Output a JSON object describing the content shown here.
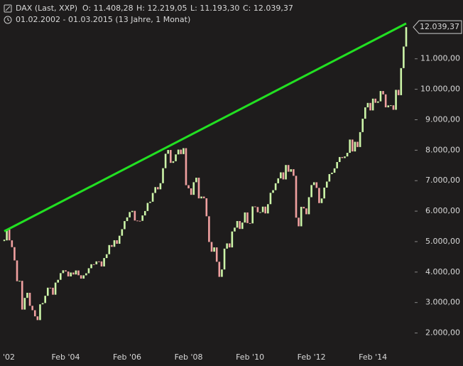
{
  "chart_data": {
    "type": "candlestick",
    "title": "DAX (Last, XXP)",
    "ohlc_header": [
      "O: 11.408,28",
      "H: 12.219,05",
      "L: 11.193,30",
      "C: 12.039,37"
    ],
    "subtitle": "01.02.2002 - 01.03.2015 (13 Jahre, 1 Monat)",
    "last_label": "12.039,37",
    "up_color": "#ccf5a8",
    "down_color": "#f0a0a0",
    "line_color": "#22e022",
    "categories": [
      "'02",
      null,
      null,
      null,
      null,
      null,
      null,
      null,
      null,
      null,
      null,
      null,
      null,
      null,
      null,
      null,
      null,
      null,
      null,
      null,
      null,
      null,
      null,
      null,
      "Feb '04",
      null,
      null,
      null,
      null,
      null,
      null,
      null,
      null,
      null,
      null,
      null,
      null,
      null,
      null,
      null,
      null,
      null,
      null,
      null,
      null,
      null,
      null,
      null,
      "Feb '06",
      null,
      null,
      null,
      null,
      null,
      null,
      null,
      null,
      null,
      null,
      null,
      null,
      null,
      null,
      null,
      null,
      null,
      null,
      null,
      null,
      null,
      null,
      null,
      "Feb '08",
      null,
      null,
      null,
      null,
      null,
      null,
      null,
      null,
      null,
      null,
      null,
      null,
      null,
      null,
      null,
      null,
      null,
      null,
      null,
      null,
      null,
      null,
      null,
      "Feb '10",
      null,
      null,
      null,
      null,
      null,
      null,
      null,
      null,
      null,
      null,
      null,
      null,
      null,
      null,
      null,
      null,
      null,
      null,
      null,
      null,
      null,
      null,
      null,
      "Feb '12",
      null,
      null,
      null,
      null,
      null,
      null,
      null,
      null,
      null,
      null,
      null,
      null,
      null,
      null,
      null,
      null,
      null,
      null,
      null,
      null,
      null,
      null,
      null,
      "Feb '14",
      null,
      null,
      null,
      null,
      null,
      null,
      null,
      null,
      null,
      null,
      null,
      null,
      null
    ],
    "values": [
      5040,
      5397,
      5041,
      4818,
      4382,
      3700,
      3712,
      2769,
      3152,
      3320,
      2893,
      2748,
      2547,
      2424,
      2942,
      2983,
      3221,
      3487,
      3485,
      3257,
      3655,
      3746,
      3965,
      4058,
      4018,
      3857,
      3985,
      3921,
      4052,
      3895,
      3785,
      3893,
      3960,
      4126,
      4256,
      4254,
      4350,
      4349,
      4185,
      4460,
      4586,
      4886,
      4829,
      5044,
      4929,
      5193,
      5408,
      5674,
      5796,
      5970,
      6009,
      5692,
      5683,
      5681,
      5859,
      6004,
      6269,
      6309,
      6597,
      6789,
      6716,
      6917,
      7409,
      7883,
      8007,
      7584,
      7638,
      7862,
      8019,
      7871,
      8067,
      6852,
      6748,
      6535,
      6949,
      7097,
      6419,
      6479,
      6422,
      5831,
      4988,
      4669,
      4810,
      4338,
      3843,
      4085,
      4769,
      4941,
      4809,
      5332,
      5458,
      5675,
      5415,
      5625,
      5957,
      5608,
      5598,
      6154,
      6136,
      5964,
      5966,
      6148,
      5925,
      6229,
      6601,
      6688,
      6914,
      7077,
      7273,
      7041,
      7514,
      7294,
      7376,
      7159,
      5785,
      5502,
      6141,
      6089,
      5898,
      6458,
      6856,
      6947,
      6762,
      6264,
      6416,
      6772,
      6971,
      7216,
      7260,
      7405,
      7612,
      7776,
      7742,
      7795,
      7914,
      8349,
      7959,
      8276,
      8104,
      8594,
      9033,
      9406,
      9552,
      9306,
      9692,
      9556,
      9603,
      9943,
      9833,
      9407,
      9470,
      9474,
      9327,
      9981,
      9806,
      10694,
      11402,
      12039.37
    ],
    "trendline": {
      "x": [
        0,
        157
      ],
      "values": [
        5340,
        12160
      ]
    },
    "ylim": [
      1500,
      12930
    ],
    "yticks": [
      {
        "value": 2000,
        "label": "2.000,00"
      },
      {
        "value": 3000,
        "label": "3.000,00"
      },
      {
        "value": 4000,
        "label": "4.000,00"
      },
      {
        "value": 5000,
        "label": "5.000,00"
      },
      {
        "value": 6000,
        "label": "6.000,00"
      },
      {
        "value": 7000,
        "label": "7.000,00"
      },
      {
        "value": 8000,
        "label": "8.000,00"
      },
      {
        "value": 9000,
        "label": "9.000,00"
      },
      {
        "value": 10000,
        "label": "10.000,00"
      },
      {
        "value": 11000,
        "label": "11.000,00"
      }
    ]
  }
}
